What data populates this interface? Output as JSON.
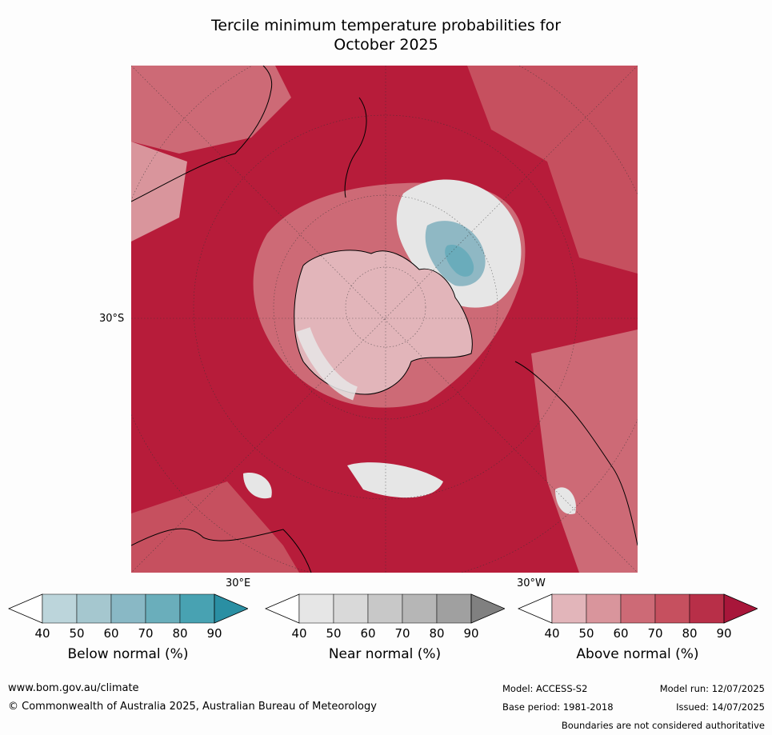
{
  "title": {
    "line1": "Tercile minimum temperature probabilities for",
    "line2": "October 2025"
  },
  "map": {
    "lat_label": "30°S",
    "lon_label_east": "30°E",
    "lon_label_west": "30°W",
    "colors": {
      "above_90": "#b71c3a",
      "above_80": "#c63c50",
      "above_70": "#cd6a76",
      "above_60": "#d9959c",
      "above_50": "#e2b5ba",
      "near": "#e6e6e6",
      "near_dark": "#cccccc",
      "below_60": "#8fb8c4",
      "below_70": "#6aacbb"
    }
  },
  "colorbars": [
    {
      "name": "below",
      "label": "Below normal (%)",
      "ticks": [
        "40",
        "50",
        "60",
        "70",
        "80",
        "90"
      ],
      "colors": [
        "#ffffff",
        "#bcd5db",
        "#a5c7cf",
        "#89b8c5",
        "#6aaebb",
        "#48a2b2",
        "#2a8fa3"
      ]
    },
    {
      "name": "near",
      "label": "Near normal (%)",
      "ticks": [
        "40",
        "50",
        "60",
        "70",
        "80",
        "90"
      ],
      "colors": [
        "#ffffff",
        "#e6e6e6",
        "#d9d9d9",
        "#c8c8c8",
        "#b6b6b6",
        "#a0a0a0",
        "#808080"
      ]
    },
    {
      "name": "above",
      "label": "Above normal (%)",
      "ticks": [
        "40",
        "50",
        "60",
        "70",
        "80",
        "90"
      ],
      "colors": [
        "#ffffff",
        "#e2b5ba",
        "#d9959c",
        "#cd6a76",
        "#c6505f",
        "#b82f48",
        "#a8163a"
      ]
    }
  ],
  "footer": {
    "url": "www.bom.gov.au/climate",
    "copyright": "© Commonwealth of Australia 2025, Australian Bureau of Meteorology",
    "model": "Model: ACCESS-S2",
    "model_run": "Model run: 12/07/2025",
    "base_period": "Base period: 1981-2018",
    "issued": "Issued: 14/07/2025",
    "disclaimer": "Boundaries are not considered authoritative"
  }
}
